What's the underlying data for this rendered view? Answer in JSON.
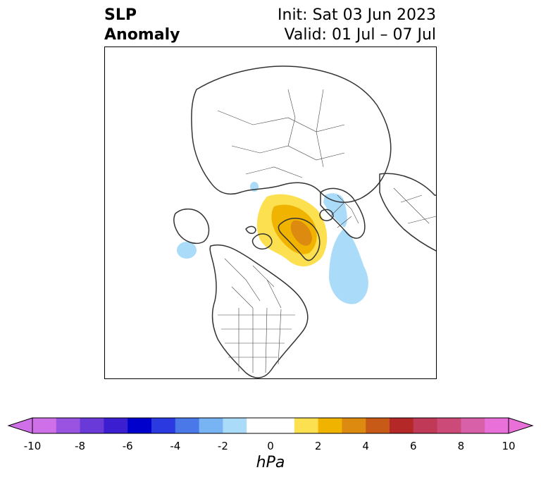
{
  "title": {
    "variable_line1": "SLP",
    "variable_line2": "Anomaly",
    "init_line": "Init: Sat 03 Jun 2023",
    "valid_line": "Valid: 01 Jul – 07 Jul"
  },
  "map": {
    "projection": "north-polar-stereographic",
    "features": [
      "coastlines",
      "country borders",
      "US state borders",
      "Canadian province borders"
    ],
    "anomalies": [
      {
        "region": "Greenland / Baffin Bay",
        "sign": "positive",
        "max_level_hpa": 3,
        "color": "#f0b400"
      },
      {
        "region": "Labrador Sea / North Atlantic",
        "sign": "negative",
        "min_level_hpa": -2,
        "color": "#aadcfa"
      },
      {
        "region": "Barents Sea",
        "sign": "negative",
        "min_level_hpa": -2,
        "color": "#aadcfa"
      },
      {
        "region": "Bering Sea",
        "sign": "negative",
        "min_level_hpa": -2,
        "color": "#aadcfa"
      }
    ]
  },
  "colorbar": {
    "label": "hPa",
    "ticks": [
      "-10",
      "-8",
      "-6",
      "-4",
      "-2",
      "0",
      "2",
      "4",
      "6",
      "8",
      "10"
    ],
    "extend": "both",
    "colors": [
      "#d070e8",
      "#9a52e0",
      "#6a3ad8",
      "#3a1ed0",
      "#0000cc",
      "#2a3ae0",
      "#4a78e8",
      "#78b4f4",
      "#aadcfa",
      "#ffffff",
      "#ffffff",
      "#fce050",
      "#f0b400",
      "#dc8a10",
      "#c85a18",
      "#b42828",
      "#c03a58",
      "#cc4a78",
      "#d860a8",
      "#e870d8"
    ]
  }
}
